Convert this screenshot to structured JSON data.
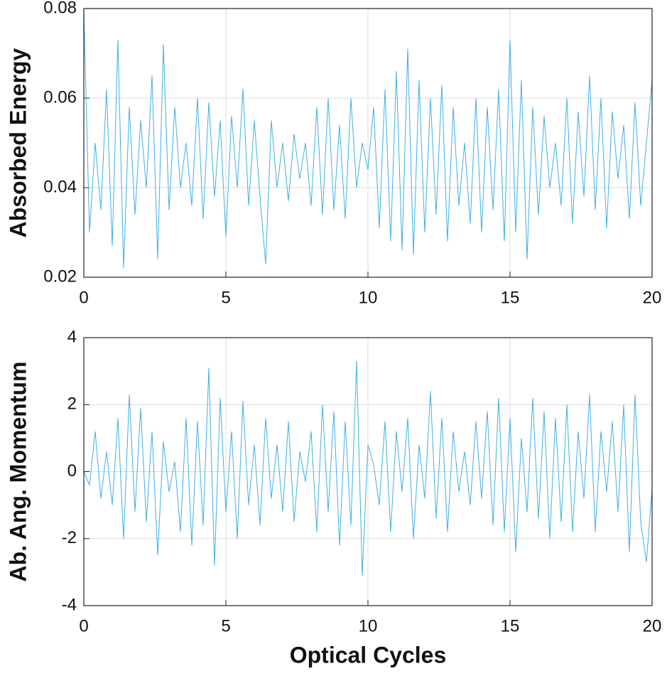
{
  "chart_data": [
    {
      "type": "line",
      "ylabel": "Absorbed Energy",
      "x": [
        0,
        0.2,
        0.4,
        0.6,
        0.8,
        1,
        1.2,
        1.4,
        1.6,
        1.8,
        2,
        2.2,
        2.4,
        2.6,
        2.8,
        3,
        3.2,
        3.4,
        3.6,
        3.8,
        4,
        4.2,
        4.4,
        4.6,
        4.8,
        5,
        5.2,
        5.4,
        5.6,
        5.8,
        6,
        6.2,
        6.4,
        6.6,
        6.8,
        7,
        7.2,
        7.4,
        7.6,
        7.8,
        8,
        8.2,
        8.4,
        8.6,
        8.8,
        9,
        9.2,
        9.4,
        9.6,
        9.8,
        10,
        10.2,
        10.4,
        10.6,
        10.8,
        11,
        11.2,
        11.4,
        11.6,
        11.8,
        12,
        12.2,
        12.4,
        12.6,
        12.8,
        13,
        13.2,
        13.4,
        13.6,
        13.8,
        14,
        14.2,
        14.4,
        14.6,
        14.8,
        15,
        15.2,
        15.4,
        15.6,
        15.8,
        16,
        16.2,
        16.4,
        16.6,
        16.8,
        17,
        17.2,
        17.4,
        17.6,
        17.8,
        18,
        18.2,
        18.4,
        18.6,
        18.8,
        19,
        19.2,
        19.4,
        19.6,
        19.8,
        20
      ],
      "series": [
        {
          "color": "#3fb0e6",
          "values": [
            0.08,
            0.03,
            0.05,
            0.035,
            0.062,
            0.027,
            0.073,
            0.022,
            0.058,
            0.034,
            0.055,
            0.04,
            0.065,
            0.024,
            0.072,
            0.035,
            0.058,
            0.04,
            0.05,
            0.036,
            0.06,
            0.033,
            0.059,
            0.038,
            0.055,
            0.029,
            0.056,
            0.04,
            0.062,
            0.036,
            0.055,
            0.038,
            0.023,
            0.055,
            0.04,
            0.05,
            0.037,
            0.052,
            0.042,
            0.05,
            0.036,
            0.058,
            0.034,
            0.06,
            0.035,
            0.054,
            0.033,
            0.06,
            0.04,
            0.05,
            0.044,
            0.058,
            0.031,
            0.062,
            0.028,
            0.066,
            0.026,
            0.071,
            0.025,
            0.064,
            0.03,
            0.06,
            0.034,
            0.063,
            0.028,
            0.058,
            0.036,
            0.05,
            0.032,
            0.06,
            0.03,
            0.058,
            0.035,
            0.062,
            0.028,
            0.073,
            0.03,
            0.064,
            0.024,
            0.058,
            0.034,
            0.056,
            0.04,
            0.05,
            0.036,
            0.06,
            0.032,
            0.057,
            0.038,
            0.065,
            0.035,
            0.06,
            0.031,
            0.057,
            0.042,
            0.054,
            0.033,
            0.059,
            0.036,
            0.05,
            0.064
          ]
        }
      ],
      "xlim": [
        0,
        20
      ],
      "xticks": [
        0,
        5,
        10,
        15,
        20
      ],
      "ylim": [
        0.02,
        0.08
      ],
      "yticks": [
        0.02,
        0.04,
        0.06,
        0.08
      ],
      "grid": true
    },
    {
      "type": "line",
      "ylabel": "Ab. Ang. Momentum",
      "xlabel": "Optical Cycles",
      "x": [
        0,
        0.2,
        0.4,
        0.6,
        0.8,
        1,
        1.2,
        1.4,
        1.6,
        1.8,
        2,
        2.2,
        2.4,
        2.6,
        2.8,
        3,
        3.2,
        3.4,
        3.6,
        3.8,
        4,
        4.2,
        4.4,
        4.6,
        4.8,
        5,
        5.2,
        5.4,
        5.6,
        5.8,
        6,
        6.2,
        6.4,
        6.6,
        6.8,
        7,
        7.2,
        7.4,
        7.6,
        7.8,
        8,
        8.2,
        8.4,
        8.6,
        8.8,
        9,
        9.2,
        9.4,
        9.6,
        9.8,
        10,
        10.2,
        10.4,
        10.6,
        10.8,
        11,
        11.2,
        11.4,
        11.6,
        11.8,
        12,
        12.2,
        12.4,
        12.6,
        12.8,
        13,
        13.2,
        13.4,
        13.6,
        13.8,
        14,
        14.2,
        14.4,
        14.6,
        14.8,
        15,
        15.2,
        15.4,
        15.6,
        15.8,
        16,
        16.2,
        16.4,
        16.6,
        16.8,
        17,
        17.2,
        17.4,
        17.6,
        17.8,
        18,
        18.2,
        18.4,
        18.6,
        18.8,
        19,
        19.2,
        19.4,
        19.6,
        19.8,
        20
      ],
      "series": [
        {
          "color": "#3fb0e6",
          "values": [
            0,
            -0.4,
            1.2,
            -0.8,
            0.6,
            -1.0,
            1.6,
            -2.0,
            2.3,
            -1.2,
            1.9,
            -1.5,
            1.2,
            -2.5,
            0.9,
            -0.6,
            0.3,
            -1.8,
            1.6,
            -2.2,
            1.5,
            -1.6,
            3.1,
            -2.8,
            2.2,
            -1.2,
            1.2,
            -2.0,
            2.1,
            -1.0,
            0.8,
            -1.6,
            1.6,
            -0.8,
            0.8,
            -1.2,
            1.5,
            -1.5,
            0.6,
            -0.3,
            1.2,
            -1.8,
            2.0,
            -1.2,
            1.8,
            -2.2,
            1.5,
            -1.6,
            3.3,
            -3.1,
            0.8,
            0.2,
            -1.0,
            1.5,
            -1.8,
            1.2,
            -0.6,
            1.6,
            -2.0,
            0.8,
            -0.8,
            2.4,
            -1.4,
            1.6,
            -1.8,
            1.2,
            -0.6,
            0.6,
            -1.0,
            1.5,
            -0.8,
            1.8,
            -1.6,
            2.2,
            -1.8,
            1.6,
            -2.4,
            1.0,
            -1.2,
            2.2,
            -1.4,
            1.8,
            -2.0,
            1.6,
            -1.5,
            2.0,
            -1.8,
            1.2,
            -0.8,
            2.3,
            -1.8,
            1.2,
            -0.6,
            1.5,
            -1.2,
            2.0,
            -2.4,
            2.3,
            -1.5,
            -2.7,
            -0.5
          ]
        }
      ],
      "xlim": [
        0,
        20
      ],
      "xticks": [
        0,
        5,
        10,
        15,
        20
      ],
      "ylim": [
        -4,
        4
      ],
      "yticks": [
        -4,
        -2,
        0,
        2,
        4
      ],
      "grid": true
    }
  ]
}
